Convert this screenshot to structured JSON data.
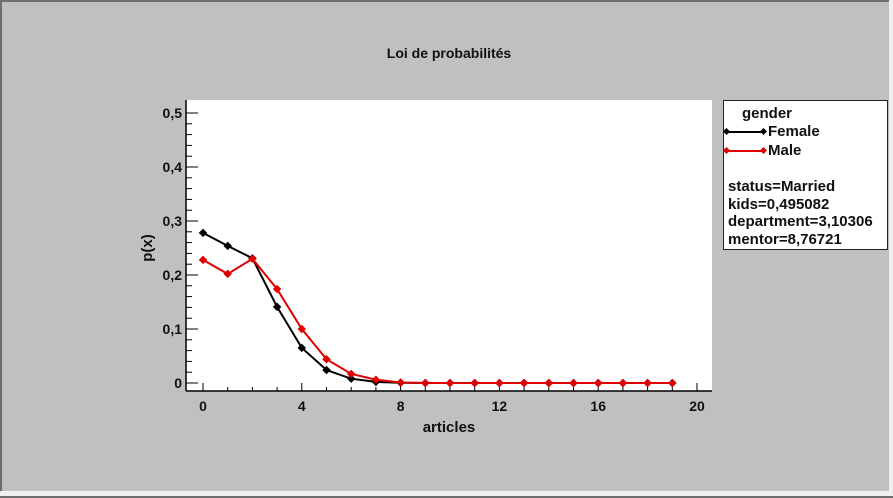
{
  "window": {
    "background": "#c0c0c0"
  },
  "chart_data": {
    "type": "line",
    "title": "Loi de probabilités",
    "xlabel": "articles",
    "ylabel": "p(x)",
    "xlim": [
      -1,
      21
    ],
    "ylim": [
      -0.015,
      0.52
    ],
    "x_ticks": [
      "0",
      "4",
      "8",
      "12",
      "16",
      "20"
    ],
    "y_ticks": [
      "0",
      "0,1",
      "0,2",
      "0,3",
      "0,4",
      "0,5"
    ],
    "grid": false,
    "legend_position": "right",
    "legend_title": "gender",
    "x": [
      0,
      1,
      2,
      3,
      4,
      5,
      6,
      7,
      8,
      9,
      10,
      11,
      12,
      13,
      14,
      15,
      16,
      17,
      18,
      19
    ],
    "series": [
      {
        "name": "Female",
        "color": "#000000",
        "values": [
          0.278,
          0.254,
          0.231,
          0.141,
          0.065,
          0.024,
          0.008,
          0.002,
          0.0005,
          0,
          0,
          0,
          0,
          0,
          0,
          0,
          0,
          0,
          0,
          0
        ]
      },
      {
        "name": "Male",
        "color": "#e00000",
        "values": [
          0.228,
          0.202,
          0.23,
          0.174,
          0.1,
          0.044,
          0.017,
          0.006,
          0.001,
          0,
          0,
          0,
          0,
          0,
          0,
          0,
          0,
          0,
          0,
          0
        ]
      }
    ],
    "annotations": [
      "status=Married",
      "kids=0,495082",
      "department=3,10306",
      "mentor=8,76721"
    ]
  },
  "legend": {
    "title": "gender",
    "items": [
      {
        "label": "Female",
        "color": "#000000"
      },
      {
        "label": "Male",
        "color": "#e00000"
      }
    ],
    "info": {
      "status": "status=Married",
      "kids": "kids=0,495082",
      "department": "department=3,10306",
      "mentor": "mentor=8,76721"
    }
  }
}
